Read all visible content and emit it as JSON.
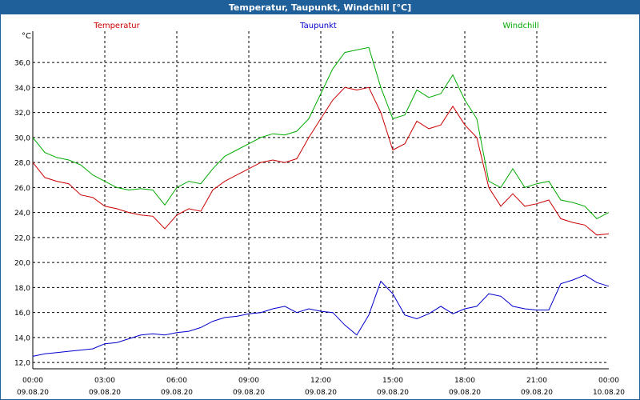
{
  "window": {
    "title": "Temperatur, Taupunkt, Windchill [°C]"
  },
  "legend": [
    {
      "name": "Temperatur",
      "color": "#cc0000"
    },
    {
      "name": "Taupunkt",
      "color": "#0000cc"
    },
    {
      "name": "Windchill",
      "color": "#00aa00"
    }
  ],
  "chart_data": {
    "type": "line",
    "title": "Temperatur, Taupunkt, Windchill [°C]",
    "ylabel": "°C",
    "xlabel": "",
    "ylim": [
      11.5,
      38.5
    ],
    "yticks": [
      12,
      14,
      16,
      18,
      20,
      22,
      24,
      26,
      28,
      30,
      32,
      34,
      36
    ],
    "ytick_labels": [
      "12,0",
      "14,0",
      "16,0",
      "18,0",
      "20,0",
      "22,0",
      "24,0",
      "26,0",
      "28,0",
      "30,0",
      "32,0",
      "34,0",
      "36,0"
    ],
    "xlim_hours": [
      0,
      24
    ],
    "xticks": [
      {
        "hour": 0,
        "time": "00:00",
        "date": "09.08.20"
      },
      {
        "hour": 3,
        "time": "03:00",
        "date": "09.08.20"
      },
      {
        "hour": 6,
        "time": "06:00",
        "date": "09.08.20"
      },
      {
        "hour": 9,
        "time": "09:00",
        "date": "09.08.20"
      },
      {
        "hour": 12,
        "time": "12:00",
        "date": "09.08.20"
      },
      {
        "hour": 15,
        "time": "15:00",
        "date": "09.08.20"
      },
      {
        "hour": 18,
        "time": "18:00",
        "date": "09.08.20"
      },
      {
        "hour": 21,
        "time": "21:00",
        "date": "09.08.20"
      },
      {
        "hour": 24,
        "time": "00:00",
        "date": "10.08.20"
      }
    ],
    "grid": true,
    "series": [
      {
        "name": "Temperatur",
        "color": "#cc0000",
        "x": [
          0,
          0.5,
          1,
          1.5,
          2,
          2.5,
          3,
          3.5,
          4,
          4.5,
          5,
          5.5,
          6,
          6.5,
          7,
          7.5,
          8,
          8.5,
          9,
          9.5,
          10,
          10.5,
          11,
          11.5,
          12,
          12.5,
          13,
          13.5,
          14,
          14.5,
          15,
          15.5,
          16,
          16.5,
          17,
          17.5,
          18,
          18.5,
          19,
          19.5,
          20,
          20.5,
          21,
          21.5,
          22,
          22.5,
          23,
          23.5,
          24
        ],
        "values": [
          28,
          26.8,
          26.5,
          26.3,
          25.4,
          25.2,
          24.5,
          24.3,
          24.0,
          23.8,
          23.7,
          22.7,
          23.8,
          24.3,
          24.1,
          25.8,
          26.5,
          27.0,
          27.5,
          28.0,
          28.2,
          28.0,
          28.3,
          30.0,
          31.5,
          33.0,
          34.0,
          33.8,
          34.0,
          32.0,
          29.0,
          29.5,
          31.3,
          30.7,
          31.0,
          32.5,
          31.0,
          30.0,
          26.0,
          24.5,
          25.5,
          24.5,
          24.7,
          25.0,
          23.5,
          23.2,
          23.0,
          22.2,
          22.3
        ]
      },
      {
        "name": "Taupunkt",
        "color": "#0000cc",
        "x": [
          0,
          0.5,
          1,
          1.5,
          2,
          2.5,
          3,
          3.5,
          4,
          4.5,
          5,
          5.5,
          6,
          6.5,
          7,
          7.5,
          8,
          8.5,
          9,
          9.5,
          10,
          10.5,
          11,
          11.5,
          12,
          12.5,
          13,
          13.5,
          14,
          14.5,
          15,
          15.5,
          16,
          16.5,
          17,
          17.5,
          18,
          18.5,
          19,
          19.5,
          20,
          20.5,
          21,
          21.5,
          22,
          22.5,
          23,
          23.5,
          24
        ],
        "values": [
          12.5,
          12.7,
          12.8,
          12.9,
          13.0,
          13.1,
          13.5,
          13.6,
          13.9,
          14.2,
          14.3,
          14.2,
          14.4,
          14.5,
          14.8,
          15.3,
          15.6,
          15.7,
          15.9,
          16.0,
          16.3,
          16.5,
          16.0,
          16.3,
          16.1,
          16.0,
          15.0,
          14.2,
          15.8,
          18.5,
          17.5,
          15.8,
          15.5,
          15.9,
          16.5,
          15.9,
          16.3,
          16.5,
          17.5,
          17.3,
          16.5,
          16.3,
          16.2,
          16.2,
          18.3,
          18.6,
          19.0,
          18.4,
          18.1
        ]
      },
      {
        "name": "Windchill",
        "color": "#00aa00",
        "x": [
          0,
          0.5,
          1,
          1.5,
          2,
          2.5,
          3,
          3.5,
          4,
          4.5,
          5,
          5.5,
          6,
          6.5,
          7,
          7.5,
          8,
          8.5,
          9,
          9.5,
          10,
          10.5,
          11,
          11.5,
          12,
          12.5,
          13,
          13.5,
          14,
          14.5,
          15,
          15.5,
          16,
          16.5,
          17,
          17.5,
          18,
          18.5,
          19,
          19.5,
          20,
          20.5,
          21,
          21.5,
          22,
          22.5,
          23,
          23.5,
          24
        ],
        "values": [
          30,
          28.8,
          28.4,
          28.2,
          27.8,
          27.0,
          26.5,
          26.0,
          25.8,
          25.9,
          25.8,
          24.6,
          26.0,
          26.5,
          26.3,
          27.5,
          28.5,
          29.0,
          29.5,
          30.0,
          30.3,
          30.2,
          30.5,
          31.5,
          33.5,
          35.5,
          36.8,
          37.0,
          37.2,
          34.0,
          31.5,
          31.8,
          33.8,
          33.2,
          33.5,
          35.0,
          33.0,
          31.5,
          26.5,
          26.0,
          27.5,
          26.0,
          26.3,
          26.5,
          25.0,
          24.8,
          24.5,
          23.5,
          24.0
        ]
      }
    ]
  }
}
